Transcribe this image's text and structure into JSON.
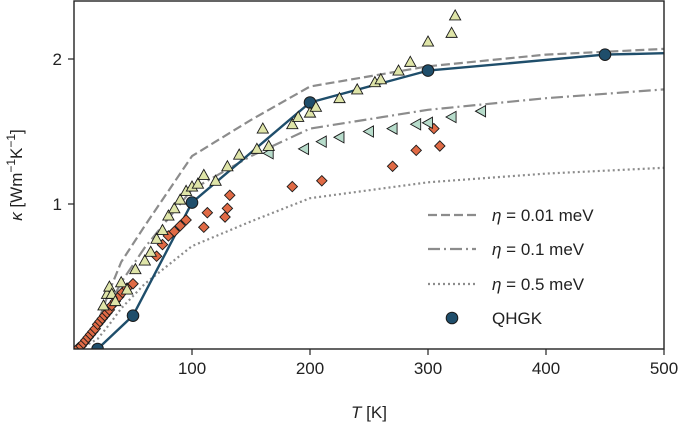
{
  "chart_data": {
    "type": "scatter",
    "title": "",
    "xlabel": {
      "italic": "T",
      "rest": " [K]"
    },
    "ylabel": {
      "italic": "κ",
      "rest": " [Wm",
      "sup1": "−1",
      "mid": "K",
      "sup2": "−1",
      "end": "]"
    },
    "xlim": [
      0,
      500
    ],
    "ylim": [
      0,
      2.4
    ],
    "xticks": [
      100,
      200,
      300,
      400,
      500
    ],
    "yticks": [
      1,
      2
    ],
    "legend": {
      "position": "lower-right",
      "entries": [
        {
          "greek": "η",
          "text": " = 0.01 meV",
          "style": "dashed"
        },
        {
          "greek": "η",
          "text": " = 0.1 meV",
          "style": "dashdot"
        },
        {
          "greek": "η",
          "text": " = 0.5 meV",
          "style": "dotted"
        },
        {
          "greek": "",
          "text": "QHGK",
          "style": "marker"
        }
      ]
    },
    "colors": {
      "qhgk": "#1f4e6b",
      "eta_lines": "#8c8c8c",
      "diamonds": "#e06a45",
      "triangles_up": "#dfe5a8",
      "triangles_left": "#b7dccb",
      "marker_edge": "#1a1a1a"
    },
    "series": [
      {
        "kind": "line-markers",
        "x": [
          20,
          50,
          100,
          200,
          300,
          450,
          500
        ],
        "y": [
          0.0,
          0.23,
          1.01,
          1.7,
          1.92,
          2.03,
          2.04
        ],
        "marker_x": [
          20,
          50,
          100,
          200,
          300,
          450
        ]
      },
      {
        "kind": "line-dashed",
        "x": [
          5,
          20,
          30,
          40,
          60,
          100,
          150,
          200,
          300,
          400,
          500
        ],
        "y": [
          0.0,
          0.18,
          0.4,
          0.6,
          0.85,
          1.33,
          1.58,
          1.81,
          1.95,
          2.03,
          2.07
        ]
      },
      {
        "kind": "line-dashdot",
        "x": [
          5,
          20,
          30,
          40,
          60,
          100,
          150,
          200,
          300,
          400,
          500
        ],
        "y": [
          0.0,
          0.13,
          0.3,
          0.46,
          0.7,
          1.1,
          1.33,
          1.52,
          1.65,
          1.73,
          1.79
        ]
      },
      {
        "kind": "line-dotted",
        "x": [
          5,
          20,
          30,
          40,
          60,
          100,
          150,
          200,
          300,
          400,
          500
        ],
        "y": [
          0.0,
          0.07,
          0.17,
          0.28,
          0.45,
          0.71,
          0.88,
          1.04,
          1.15,
          1.21,
          1.25
        ]
      },
      {
        "kind": "diamond",
        "x": [
          4,
          6,
          8,
          10,
          12,
          14,
          16,
          18,
          20,
          22,
          24,
          26,
          28,
          30,
          32,
          35,
          38,
          41,
          45,
          50,
          70,
          75,
          80,
          85,
          90,
          95,
          110,
          113,
          128,
          130,
          132,
          185,
          210,
          270,
          290,
          305,
          310
        ],
        "y": [
          0.01,
          0.02,
          0.04,
          0.06,
          0.08,
          0.1,
          0.12,
          0.14,
          0.17,
          0.19,
          0.21,
          0.23,
          0.25,
          0.27,
          0.3,
          0.33,
          0.36,
          0.39,
          0.42,
          0.45,
          0.64,
          0.72,
          0.78,
          0.81,
          0.85,
          0.89,
          0.84,
          0.94,
          0.91,
          0.97,
          1.06,
          1.12,
          1.16,
          1.26,
          1.37,
          1.52,
          1.4
        ]
      },
      {
        "kind": "triangle-up",
        "x": [
          25,
          28,
          30,
          32,
          35,
          40,
          45,
          52,
          60,
          65,
          70,
          75,
          80,
          85,
          90,
          95,
          100,
          105,
          110,
          120,
          130,
          140,
          155,
          160,
          165,
          185,
          190,
          200,
          205,
          225,
          240,
          255,
          260,
          275,
          285,
          300,
          320,
          323
        ],
        "y": [
          0.3,
          0.38,
          0.43,
          0.38,
          0.33,
          0.46,
          0.41,
          0.55,
          0.61,
          0.67,
          0.76,
          0.82,
          0.92,
          0.97,
          1.03,
          1.09,
          1.12,
          1.14,
          1.2,
          1.16,
          1.26,
          1.34,
          1.38,
          1.52,
          1.4,
          1.55,
          1.6,
          1.63,
          1.67,
          1.73,
          1.79,
          1.84,
          1.86,
          1.92,
          1.98,
          2.12,
          2.18,
          2.3
        ]
      },
      {
        "kind": "triangle-left",
        "x": [
          165,
          195,
          210,
          225,
          250,
          270,
          290,
          300,
          320,
          345
        ],
        "y": [
          1.35,
          1.38,
          1.43,
          1.46,
          1.5,
          1.52,
          1.55,
          1.56,
          1.6,
          1.64
        ]
      }
    ]
  }
}
